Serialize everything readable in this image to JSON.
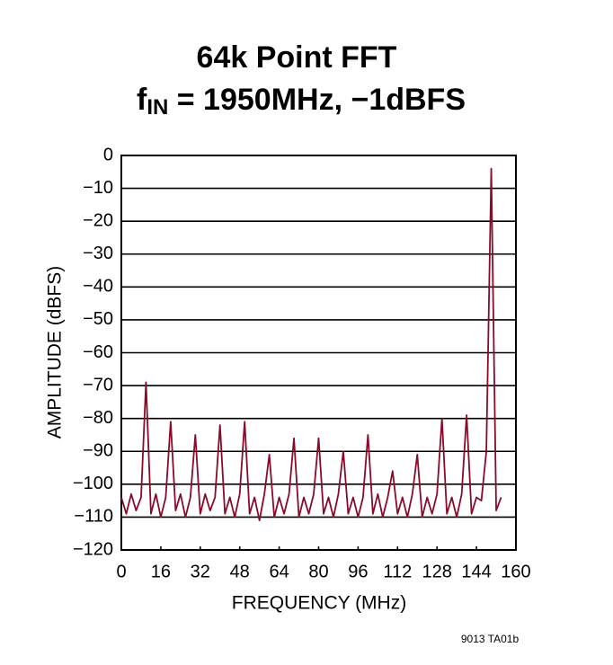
{
  "chart_data": {
    "type": "line",
    "title": "64k Point FFT",
    "subtitle": [
      "f",
      "IN",
      " = 1950MHz, −1dBFS"
    ],
    "xlabel": "FREQUENCY (MHz)",
    "ylabel": "AMPLITUDE (dBFS)",
    "footnote": "9013 TA01b",
    "xlim": [
      0,
      160
    ],
    "xticks": [
      0,
      16,
      32,
      48,
      64,
      80,
      96,
      112,
      128,
      144,
      160
    ],
    "ylim": [
      -120,
      0
    ],
    "yticks": [
      0,
      {
        "value": -10,
        "label": "−10"
      },
      {
        "value": -20,
        "label": "−20"
      },
      {
        "value": -30,
        "label": "−30"
      },
      {
        "value": -40,
        "label": "−40"
      },
      {
        "value": -50,
        "label": "−50"
      },
      {
        "value": -60,
        "label": "−60"
      },
      {
        "value": -70,
        "label": "−70"
      },
      {
        "value": -80,
        "label": "−80"
      },
      {
        "value": -90,
        "label": "−90"
      },
      {
        "value": -100,
        "label": "−100"
      },
      {
        "value": -110,
        "label": "−110"
      },
      {
        "value": -120,
        "label": "−120"
      }
    ],
    "grid": "y",
    "x": [
      0,
      2,
      4,
      6,
      8,
      10,
      12,
      14,
      16,
      18,
      20,
      22,
      24,
      26,
      28,
      30,
      32,
      34,
      36,
      38,
      40,
      42,
      44,
      46,
      48,
      50,
      52,
      54,
      56,
      58,
      60,
      62,
      64,
      66,
      68,
      70,
      72,
      74,
      76,
      78,
      80,
      82,
      84,
      86,
      88,
      90,
      92,
      94,
      96,
      98,
      100,
      102,
      104,
      106,
      108,
      110,
      112,
      114,
      116,
      118,
      120,
      122,
      124,
      126,
      128,
      130,
      132,
      134,
      136,
      138,
      140,
      142,
      144,
      146,
      148,
      150,
      152,
      154
    ],
    "series": [
      {
        "color": "#8a0a2a",
        "values": [
          -104,
          -109,
          -103,
          -108,
          -104,
          -69,
          -109,
          -103,
          -110,
          -104,
          -81,
          -108,
          -103,
          -110,
          -104,
          -85,
          -109,
          -103,
          -108,
          -104,
          -82,
          -109,
          -104,
          -110,
          -103,
          -81,
          -109,
          -104,
          -111,
          -103,
          -91,
          -110,
          -104,
          -109,
          -103,
          -86,
          -110,
          -104,
          -109,
          -103,
          -86,
          -109,
          -104,
          -110,
          -103,
          -90,
          -109,
          -104,
          -110,
          -104,
          -85,
          -109,
          -103,
          -110,
          -104,
          -96,
          -109,
          -104,
          -110,
          -103,
          -91,
          -110,
          -104,
          -109,
          -103,
          -80,
          -109,
          -104,
          -110,
          -103,
          -79,
          -109,
          -104,
          -105,
          -90,
          -4,
          -108,
          -104
        ]
      }
    ]
  }
}
